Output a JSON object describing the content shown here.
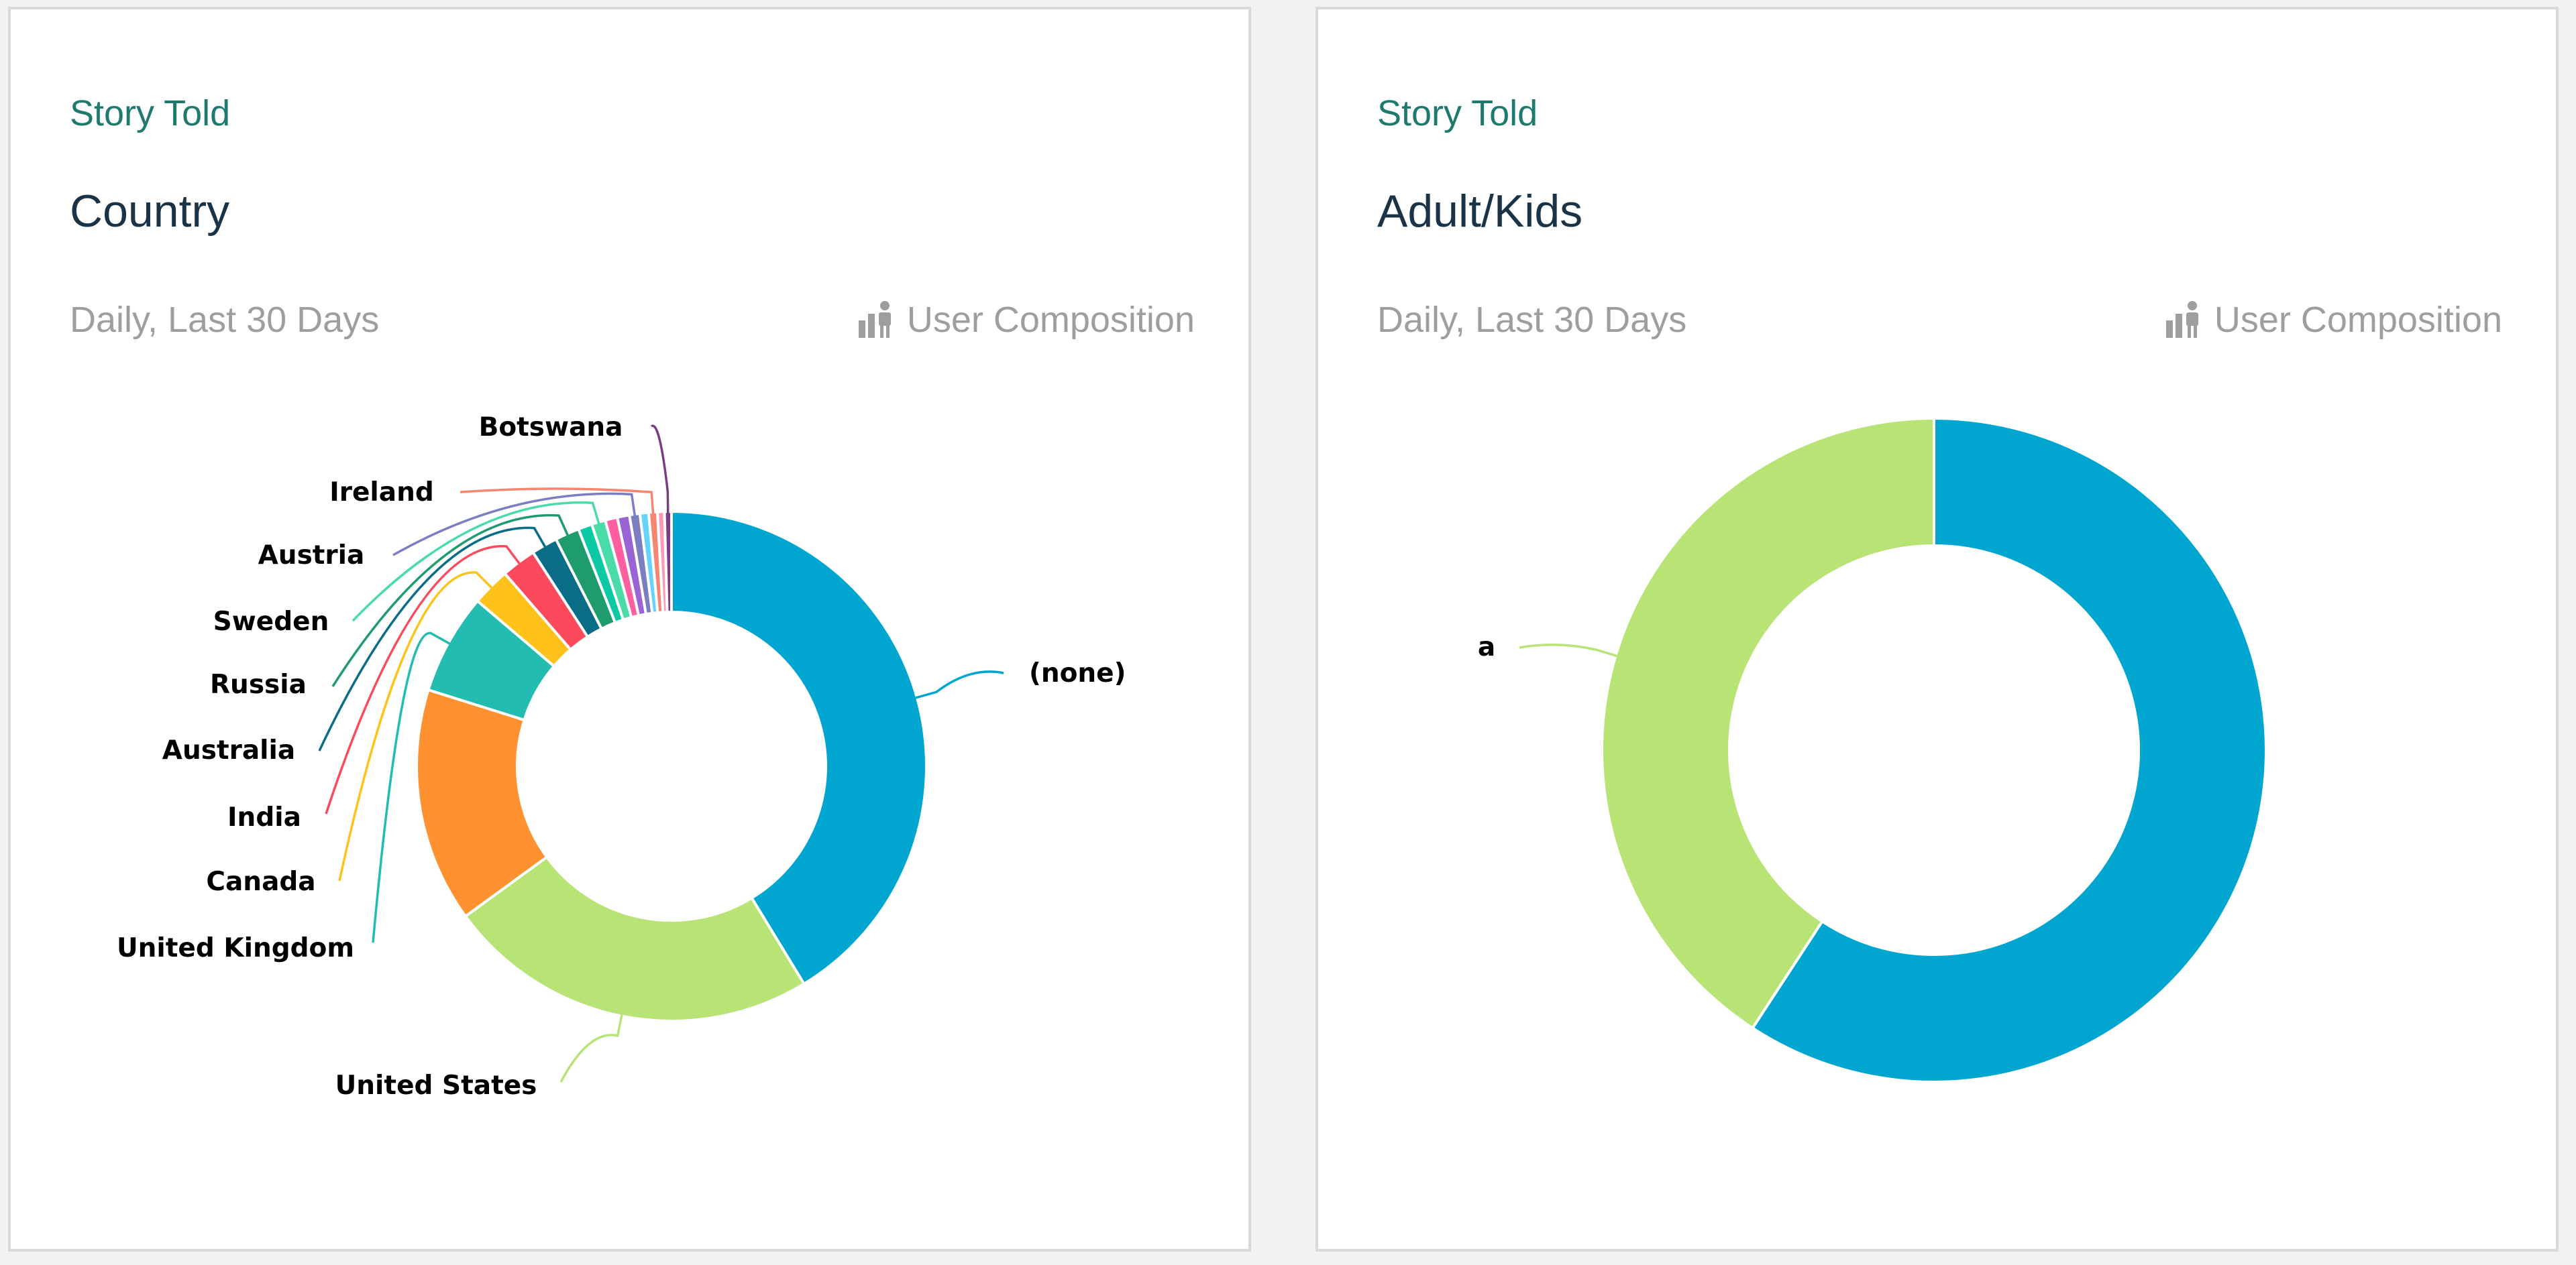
{
  "panels": [
    {
      "eyebrow": "Story Told",
      "title": "Country",
      "period": "Daily, Last 30 Days",
      "composition_label": "User Composition",
      "composition_icon": "user-composition-icon"
    },
    {
      "eyebrow": "Story Told",
      "title": "Adult/Kids",
      "period": "Daily, Last 30 Days",
      "composition_label": "User Composition",
      "composition_icon": "user-composition-icon"
    }
  ],
  "chart_data": [
    {
      "type": "pie",
      "donut": true,
      "slices": [
        {
          "label": "(none)",
          "value": 37.5,
          "color": "#00a6cf"
        },
        {
          "label": "United States",
          "value": 21.5,
          "color": "#b8e375"
        },
        {
          "label": "",
          "value": 13.5,
          "color": "#ff9131"
        },
        {
          "label": "United Kingdom",
          "value": 5.8,
          "color": "#22bdb0"
        },
        {
          "label": "Canada",
          "value": 2.2,
          "color": "#ffc21a"
        },
        {
          "label": "India",
          "value": 2.0,
          "color": "#fc4a5c"
        },
        {
          "label": "Australia",
          "value": 1.5,
          "color": "#0a6d87"
        },
        {
          "label": "Russia",
          "value": 1.4,
          "color": "#1e9c6e"
        },
        {
          "label": "",
          "value": 0.8,
          "color": "#0ac9a4"
        },
        {
          "label": "Sweden",
          "value": 0.8,
          "color": "#49dba8"
        },
        {
          "label": "",
          "value": 0.7,
          "color": "#ff5fa1"
        },
        {
          "label": "",
          "value": 0.7,
          "color": "#9b64d4"
        },
        {
          "label": "Austria",
          "value": 0.6,
          "color": "#7b7ec0"
        },
        {
          "label": "",
          "value": 0.5,
          "color": "#64d4ff"
        },
        {
          "label": "Ireland",
          "value": 0.5,
          "color": "#f48672"
        },
        {
          "label": "",
          "value": 0.4,
          "color": "#ff99b8"
        },
        {
          "label": "Botswana",
          "value": 0.4,
          "color": "#7d3b87"
        }
      ]
    },
    {
      "type": "pie",
      "donut": true,
      "slices": [
        {
          "label": "",
          "value": 59.2,
          "color": "#00a6cf"
        },
        {
          "label": "a",
          "value": 40.8,
          "color": "#b8e375"
        }
      ]
    }
  ]
}
